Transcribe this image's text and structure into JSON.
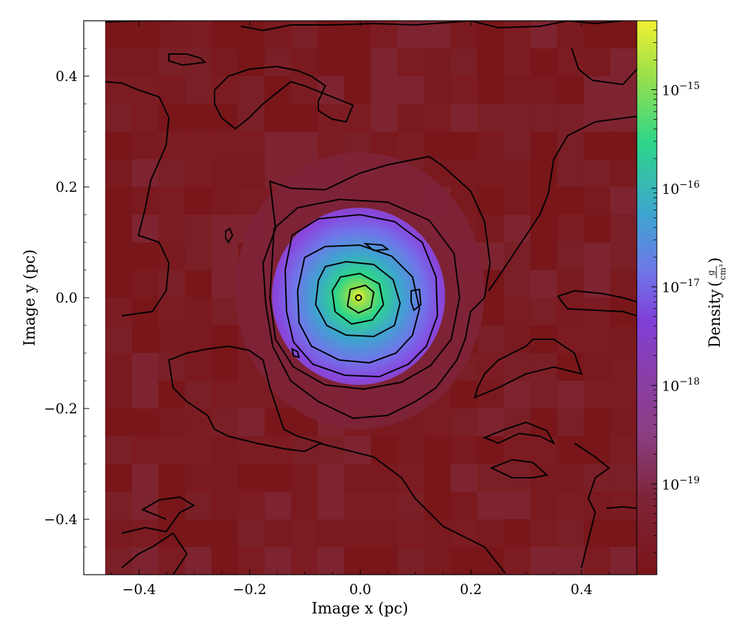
{
  "chart_data": {
    "type": "heatmap",
    "title": "",
    "xlabel": "Image x  (pc)",
    "ylabel": "Image y  (pc)",
    "xlim": [
      -0.5,
      0.5
    ],
    "ylim": [
      -0.5,
      0.5
    ],
    "x_tick_labels": [
      "−0.4",
      "−0.2",
      "0.0",
      "0.2",
      "0.4"
    ],
    "y_tick_labels": [
      "−0.4",
      "−0.2",
      "0.0",
      "0.2",
      "0.4"
    ],
    "x_ticks": [
      -0.4,
      -0.2,
      0.0,
      0.2,
      0.4
    ],
    "y_ticks": [
      -0.4,
      -0.2,
      0.0,
      0.2,
      0.4
    ],
    "data_x_extent": [
      -0.46,
      0.5
    ],
    "colorbar": {
      "label": "Density",
      "unit_numerator": "g",
      "unit_denominator": "cm³",
      "scale": "log",
      "range": [
        1.2e-20,
        5e-15
      ],
      "ticks": [
        1e-19,
        1e-18,
        1e-17,
        1e-16,
        1e-15
      ],
      "tick_base": "10",
      "tick_exponents": [
        "−19",
        "−18",
        "−17",
        "−16",
        "−15"
      ],
      "colormap": "viridis-like (dark red floor to yellow)"
    },
    "peak": {
      "x": 0.0,
      "y": 0.0,
      "density": 5e-15
    },
    "background_density": 1.5e-20,
    "grid": false,
    "contours": true,
    "contour_color": "#000000",
    "colors": [
      "#7a1518",
      "#7e2438",
      "#8a3ea8",
      "#8848e0",
      "#6e78e8",
      "#3ea4cf",
      "#2ed58a",
      "#9ae04a",
      "#f0f032"
    ]
  }
}
